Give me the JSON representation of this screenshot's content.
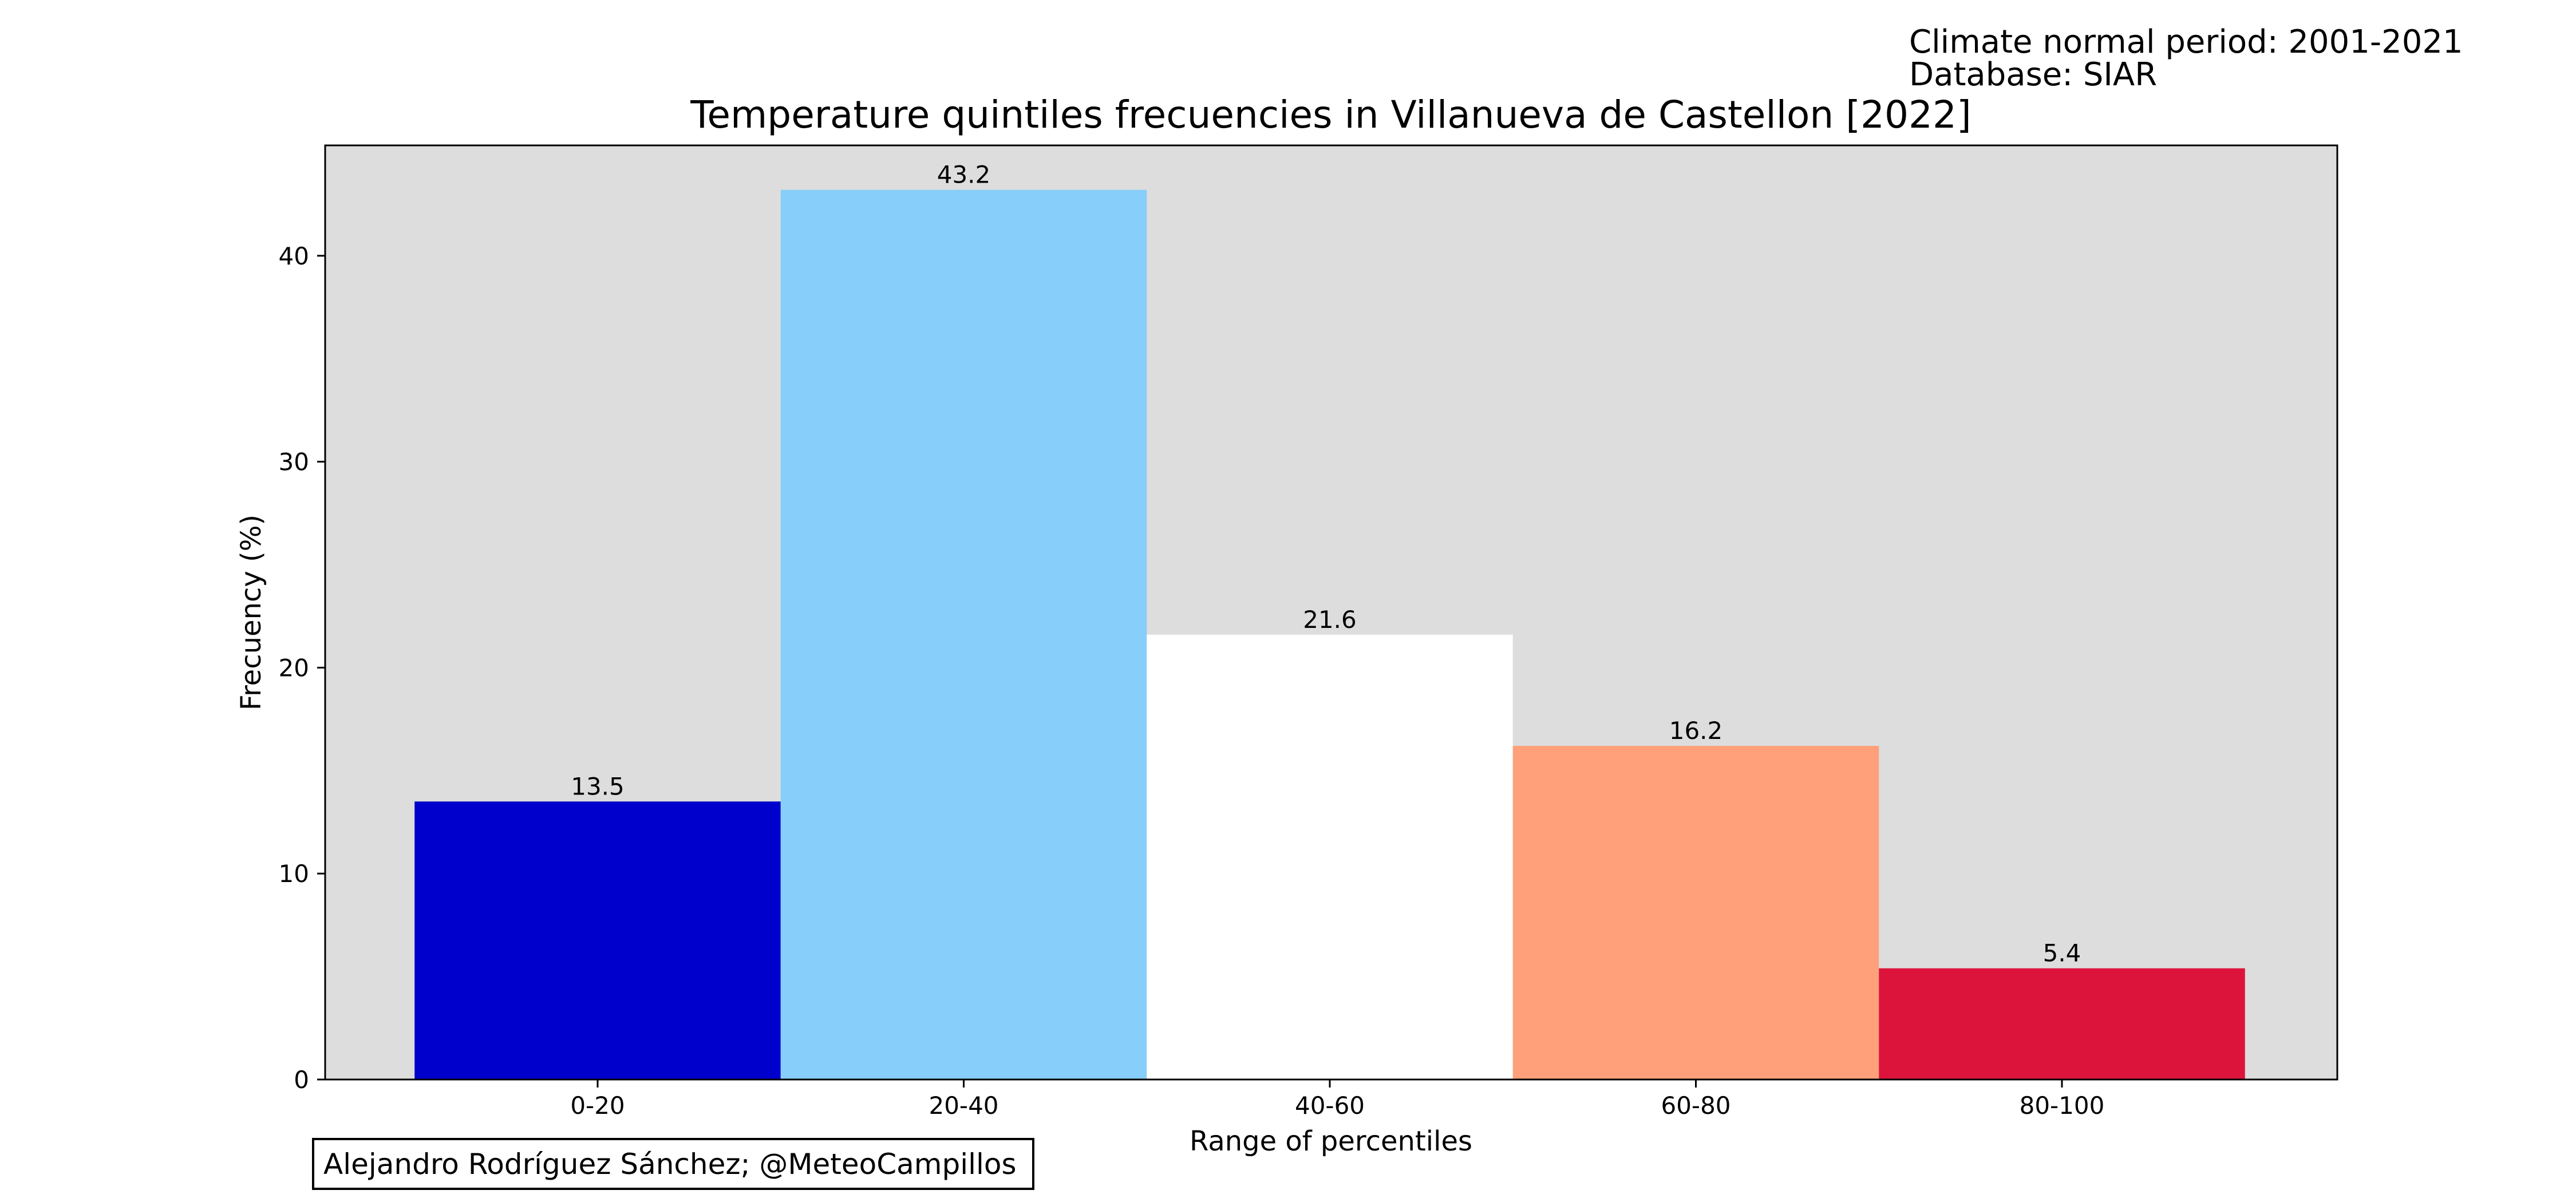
{
  "header_note": {
    "line1": "Climate normal period: 2001-2021",
    "line2": "Database: SIAR"
  },
  "credit": "Alejandro Rodríguez Sánchez; @MeteoCampillos",
  "chart_data": {
    "type": "bar",
    "title": "Temperature quintiles frecuencies in Villanueva de Castellon [2022]",
    "xlabel": "Range of percentiles",
    "ylabel": "Frecuency (%)",
    "categories": [
      "0-20",
      "20-40",
      "40-60",
      "60-80",
      "80-100"
    ],
    "values": [
      13.5,
      43.2,
      21.6,
      16.2,
      5.4
    ],
    "value_labels": [
      "13.5",
      "43.2",
      "21.6",
      "16.2",
      "5.4"
    ],
    "colors": [
      "#0000cd",
      "#87cefa",
      "#ffffff",
      "#ffa07a",
      "#dc143c"
    ],
    "ylim": [
      0,
      45.36
    ],
    "yticks": [
      0,
      10,
      20,
      30,
      40
    ],
    "background": "#dddddd",
    "grid": false,
    "legend": "none"
  }
}
